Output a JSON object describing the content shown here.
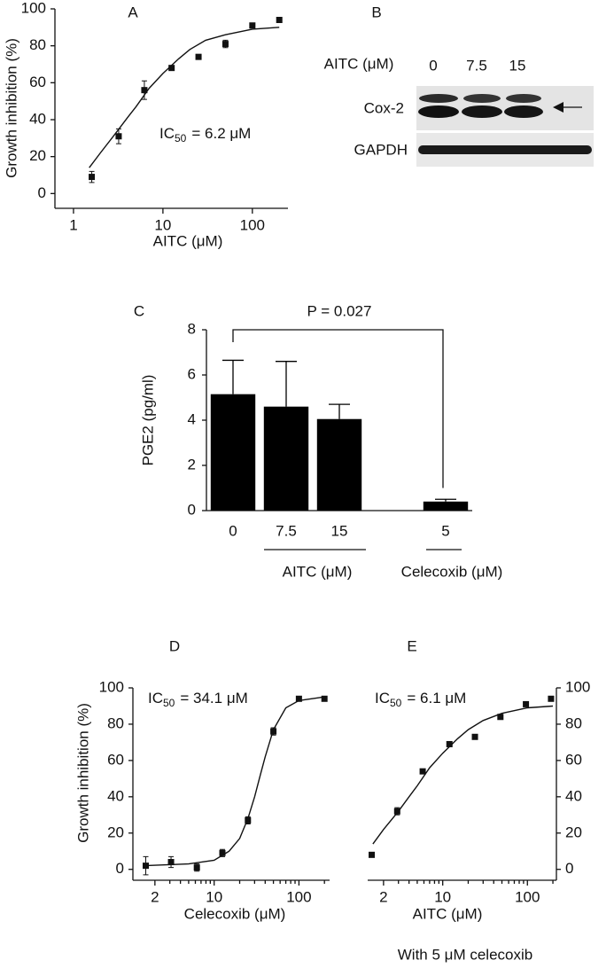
{
  "chart_data": [
    {
      "type": "scatter",
      "panel_label": "A",
      "xlabel": "AITC (μM)",
      "ylabel": "Growth inhibition (%)",
      "annotation": {
        "text": "IC",
        "sub": "50",
        "rest": "= 6.2 μM"
      },
      "x": [
        1.6,
        3.2,
        6.2,
        12.5,
        25,
        50,
        100,
        200
      ],
      "values": [
        9,
        31,
        56,
        68,
        74,
        81,
        91,
        94
      ],
      "errors": [
        3,
        4,
        5,
        1,
        1,
        2,
        1,
        1
      ],
      "fit": {
        "x": [
          1.5,
          2,
          3,
          4,
          5,
          7,
          10,
          15,
          20,
          30,
          50,
          100,
          200
        ],
        "y": [
          14,
          22,
          33,
          41,
          47,
          57,
          65,
          73,
          78,
          83,
          86,
          89,
          90
        ]
      },
      "xscale": "log",
      "xlim": [
        0.62,
        250
      ],
      "xticks": [
        1,
        10,
        100
      ],
      "ylim": [
        -8,
        100
      ],
      "yticks": [
        0,
        20,
        40,
        60,
        80,
        100
      ],
      "yaxis_side": "left",
      "color": "#111111"
    },
    {
      "type": "bar",
      "panel_label": "C",
      "ylabel": "PGE2 (pg/ml)",
      "categories": [
        "0",
        "7.5",
        "15",
        null,
        "5"
      ],
      "values": [
        5.15,
        4.6,
        4.05,
        null,
        0.4
      ],
      "errors": [
        1.5,
        2.0,
        0.65,
        null,
        0.1
      ],
      "groups": [
        "AITC (μM)",
        "Celecoxib (μM)"
      ],
      "annotation": "P = 0.027",
      "ylim": [
        0,
        8
      ],
      "yticks": [
        0,
        2,
        4,
        6,
        8
      ],
      "color": "#000000"
    },
    {
      "type": "scatter",
      "panel_label": "D",
      "xlabel": "Celecoxib (μM)",
      "ylabel": "Growth inhibition (%)",
      "annotation": {
        "text": "IC",
        "sub": "50",
        "rest": "= 34.1 μM"
      },
      "x": [
        1.56,
        3.1,
        6.25,
        12.5,
        25,
        50,
        100,
        200
      ],
      "values": [
        2,
        4,
        1,
        9,
        27,
        76,
        94,
        94
      ],
      "errors": [
        5,
        3,
        2,
        2,
        2,
        2,
        0.5,
        0.5
      ],
      "fit": {
        "x": [
          1.5,
          5,
          10,
          15,
          20,
          25,
          30,
          35,
          40,
          50,
          70,
          100,
          200
        ],
        "y": [
          2,
          3,
          5,
          10,
          17,
          28,
          40,
          52,
          62,
          77,
          89,
          93,
          95
        ]
      },
      "xscale": "log",
      "xlim": [
        1.1,
        230
      ],
      "xticks": [
        2,
        10,
        100
      ],
      "xminorticks": [
        3,
        4,
        5,
        6,
        7,
        8,
        9,
        20,
        30,
        40,
        50,
        60,
        70,
        80,
        90,
        200
      ],
      "ylim": [
        -6,
        100
      ],
      "yticks": [
        0,
        20,
        40,
        60,
        80,
        100
      ],
      "yaxis_side": "left",
      "color": "#111111"
    },
    {
      "type": "scatter",
      "panel_label": "E",
      "xlabel": "AITC (μM)",
      "subtitle": "With 5 μM celecoxib",
      "annotation": {
        "text": "IC",
        "sub": "50",
        "rest": "= 6.1 μM"
      },
      "x": [
        1.45,
        2.9,
        5.8,
        12,
        24,
        48,
        96,
        190
      ],
      "values": [
        8,
        32,
        54,
        69,
        73,
        84,
        91,
        94
      ],
      "errors": [
        0.5,
        2,
        1,
        1,
        1,
        1,
        1,
        1
      ],
      "fit": {
        "x": [
          1.5,
          2,
          3,
          4,
          5,
          7,
          10,
          15,
          20,
          30,
          50,
          100,
          200
        ],
        "y": [
          14,
          22,
          32,
          40,
          46,
          56,
          64,
          72,
          77,
          82,
          86,
          89,
          90
        ]
      },
      "xscale": "log",
      "xlim": [
        1.3,
        220
      ],
      "xticks": [
        2,
        10,
        100
      ],
      "xminorticks": [
        3,
        4,
        5,
        6,
        7,
        8,
        9,
        20,
        30,
        40,
        50,
        60,
        70,
        80,
        90,
        200
      ],
      "ylim": [
        -6,
        100
      ],
      "yticks": [
        0,
        20,
        40,
        60,
        80,
        100
      ],
      "yaxis_side": "right",
      "color": "#111111"
    }
  ],
  "blot": {
    "panel_label": "B",
    "treatment": "AITC (μM)",
    "lanes": [
      "0",
      "7.5",
      "15"
    ],
    "bands": [
      "Cox-2",
      "GAPDH"
    ]
  }
}
